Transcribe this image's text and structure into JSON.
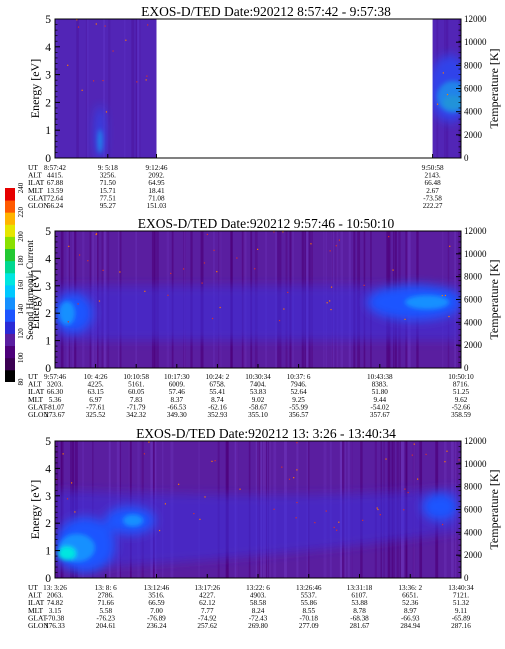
{
  "colors": {
    "palette": [
      "#000000",
      "#3b0052",
      "#4d007a",
      "#5a1ea0",
      "#2a2ad6",
      "#1d55ff",
      "#1690ff",
      "#00c8ff",
      "#00e6e0",
      "#00d890",
      "#22c832",
      "#8ae000",
      "#e6e600",
      "#ffb400",
      "#ff5a00",
      "#e60000"
    ]
  },
  "colorbar": {
    "label": "Second Harmonic Current",
    "ticks": [
      "80",
      "100",
      "120",
      "140",
      "160",
      "180",
      "200",
      "220",
      "240"
    ]
  },
  "chart_data": [
    {
      "type": "heatmap",
      "title": "EXOS-D/TED   Date:920212  8:57:42 - 9:57:38",
      "ylabel": "Energy [eV]",
      "ylabel_right": "Temperature [K]",
      "ylim": [
        0,
        5
      ],
      "yticks": [
        "0",
        "1",
        "2",
        "3",
        "4",
        "5"
      ],
      "ylim_right": [
        0,
        12000
      ],
      "yticks_right": [
        "0",
        "2000",
        "4000",
        "6000",
        "8000",
        "10000",
        "12000"
      ],
      "data_gap": [
        0.25,
        0.93
      ],
      "row_labels": [
        "UT",
        "ALT",
        "ILAT",
        "MLT",
        "GLAT",
        "GLON"
      ],
      "columns": [
        {
          "pos": 0.0,
          "values": [
            "8:57:42",
            "4415.",
            "67.88",
            "13.59",
            "72.64",
            "56.24"
          ]
        },
        {
          "pos": 0.13,
          "values": [
            "9: 5:18",
            "3256.",
            "71.50",
            "15.71",
            "77.51",
            "95.27"
          ]
        },
        {
          "pos": 0.25,
          "values": [
            "9:12:46",
            "2092.",
            "64.95",
            "18.41",
            "71.08",
            "151.03"
          ]
        },
        {
          "pos": 0.93,
          "values": [
            "9:50:58",
            "2143.",
            "66.48",
            "2.67",
            "-73.58",
            "222.27"
          ]
        }
      ]
    },
    {
      "type": "heatmap",
      "title": "EXOS-D/TED   Date:920212  9:57:46 - 10:50:10",
      "ylabel": "Energy [eV]",
      "ylabel_right": "Temperature [K]",
      "ylim": [
        0,
        5
      ],
      "yticks": [
        "0",
        "1",
        "2",
        "3",
        "4",
        "5"
      ],
      "ylim_right": [
        0,
        12000
      ],
      "yticks_right": [
        "0",
        "2000",
        "4000",
        "6000",
        "8000",
        "10000",
        "12000"
      ],
      "row_labels": [
        "UT",
        "ALT",
        "ILAT",
        "MLT",
        "GLAT",
        "GLON"
      ],
      "columns": [
        {
          "pos": 0.0,
          "values": [
            "9:57:46",
            "3203.",
            "66.30",
            "5.36",
            "-81.07",
            "273.67"
          ]
        },
        {
          "pos": 0.1,
          "values": [
            "10: 4:26",
            "4225.",
            "63.15",
            "6.97",
            "-77.61",
            "325.52"
          ]
        },
        {
          "pos": 0.2,
          "values": [
            "10:10:58",
            "5161.",
            "60.05",
            "7.83",
            "-71.79",
            "342.32"
          ]
        },
        {
          "pos": 0.3,
          "values": [
            "10:17:30",
            "6009.",
            "57.46",
            "8.37",
            "-66.53",
            "349.30"
          ]
        },
        {
          "pos": 0.4,
          "values": [
            "10:24: 2",
            "6758.",
            "55.41",
            "8.74",
            "-62.16",
            "352.93"
          ]
        },
        {
          "pos": 0.5,
          "values": [
            "10:30:34",
            "7404.",
            "53.83",
            "9.02",
            "-58.67",
            "355.10"
          ]
        },
        {
          "pos": 0.6,
          "values": [
            "10:37: 6",
            "7946.",
            "52.64",
            "9.25",
            "-55.99",
            "356.57"
          ]
        },
        {
          "pos": 0.8,
          "values": [
            "10:43:38",
            "8383.",
            "51.80",
            "9.44",
            "-54.02",
            "357.67"
          ]
        },
        {
          "pos": 1.0,
          "values": [
            "10:50:10",
            "8716.",
            "51.25",
            "9.62",
            "-52.66",
            "358.59"
          ]
        }
      ]
    },
    {
      "type": "heatmap",
      "title": "EXOS-D/TED   Date:920212  13: 3:26 - 13:40:34",
      "ylabel": "Energy [eV]",
      "ylabel_right": "Temperature [K]",
      "ylim": [
        0,
        5
      ],
      "yticks": [
        "0",
        "1",
        "2",
        "3",
        "4",
        "5"
      ],
      "ylim_right": [
        0,
        12000
      ],
      "yticks_right": [
        "0",
        "2000",
        "4000",
        "6000",
        "8000",
        "10000",
        "12000"
      ],
      "row_labels": [
        "UT",
        "ALT",
        "ILAT",
        "MLT",
        "GLAT",
        "GLON"
      ],
      "columns": [
        {
          "pos": 0.0,
          "values": [
            "13: 3:26",
            "2063.",
            "74.82",
            "3.15",
            "-70.38",
            "176.33"
          ]
        },
        {
          "pos": 0.125,
          "values": [
            "13: 8: 6",
            "2786.",
            "71.66",
            "5.58",
            "-76.23",
            "204.61"
          ]
        },
        {
          "pos": 0.25,
          "values": [
            "13:12:46",
            "3516.",
            "66.59",
            "7.00",
            "-76.89",
            "236.24"
          ]
        },
        {
          "pos": 0.375,
          "values": [
            "13:17:26",
            "4227.",
            "62.12",
            "7.77",
            "-74.92",
            "257.62"
          ]
        },
        {
          "pos": 0.5,
          "values": [
            "13:22: 6",
            "4903.",
            "58.58",
            "8.24",
            "-72.43",
            "269.80"
          ]
        },
        {
          "pos": 0.625,
          "values": [
            "13:26:46",
            "5537.",
            "55.86",
            "8.55",
            "-70.18",
            "277.09"
          ]
        },
        {
          "pos": 0.75,
          "values": [
            "13:31:18",
            "6107.",
            "53.88",
            "8.78",
            "-68.38",
            "281.67"
          ]
        },
        {
          "pos": 0.875,
          "values": [
            "13:36: 2",
            "6651.",
            "52.36",
            "8.97",
            "-66.93",
            "284.94"
          ]
        },
        {
          "pos": 1.0,
          "values": [
            "13:40:34",
            "7121.",
            "51.32",
            "9.11",
            "-65.89",
            "287.16"
          ]
        }
      ]
    }
  ]
}
